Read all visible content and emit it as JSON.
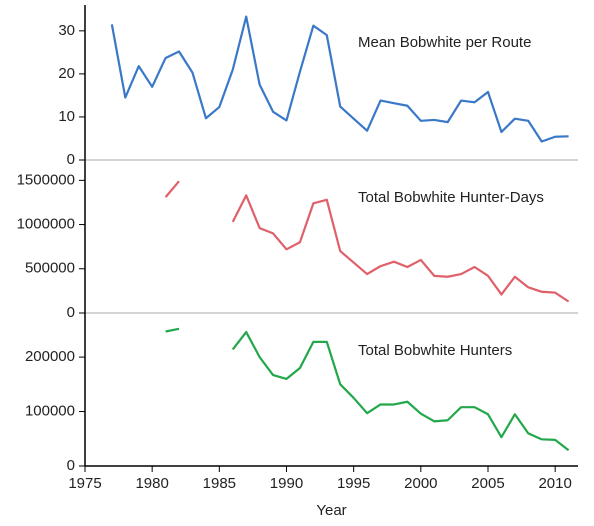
{
  "chart_data": [
    {
      "type": "line",
      "title": "Mean Bobwhite per Route",
      "x": [
        1977,
        1978,
        1979,
        1980,
        1981,
        1982,
        1983,
        1984,
        1985,
        1986,
        1987,
        1988,
        1989,
        1990,
        1991,
        1992,
        1993,
        1994,
        1995,
        1996,
        1997,
        1998,
        1999,
        2000,
        2001,
        2002,
        2003,
        2004,
        2005,
        2006,
        2007,
        2008,
        2009,
        2010,
        2011
      ],
      "series": [
        {
          "name": "Mean Bobwhite per Route",
          "color": "#3a78c8",
          "values": [
            31.5,
            14.5,
            21.8,
            17,
            23.7,
            25.2,
            20.3,
            9.7,
            12.3,
            21,
            33.3,
            17.5,
            11.2,
            9.2,
            20.5,
            31.2,
            29,
            12.4,
            9.6,
            6.8,
            13.8,
            13.2,
            12.6,
            9.1,
            9.3,
            8.8,
            13.8,
            13.4,
            15.8,
            6.5,
            9.6,
            9.1,
            4.3,
            5.4,
            5.5
          ]
        }
      ],
      "xlim": [
        1975,
        2011.7
      ],
      "ylim": [
        0,
        36
      ],
      "yticks": [
        0,
        10,
        20,
        30
      ]
    },
    {
      "type": "line",
      "title": "Total Bobwhite Hunter-Days",
      "x": [
        1977,
        1978,
        1979,
        1980,
        1981,
        1982,
        1983,
        1984,
        1985,
        1986,
        1987,
        1988,
        1989,
        1990,
        1991,
        1992,
        1993,
        1994,
        1995,
        1996,
        1997,
        1998,
        1999,
        2000,
        2001,
        2002,
        2003,
        2004,
        2005,
        2006,
        2007,
        2008,
        2009,
        2010,
        2011
      ],
      "series": [
        {
          "name": "Total Bobwhite Hunter-Days",
          "color": "#e0606a",
          "values": [
            null,
            null,
            null,
            null,
            1310000,
            1490000,
            null,
            null,
            null,
            1030000,
            1330000,
            960000,
            900000,
            720000,
            800000,
            1240000,
            1280000,
            700000,
            570000,
            440000,
            530000,
            580000,
            520000,
            600000,
            420000,
            410000,
            440000,
            520000,
            420000,
            210000,
            410000,
            290000,
            240000,
            230000,
            130000
          ]
        }
      ],
      "xlim": [
        1975,
        2011.7
      ],
      "ylim": [
        0,
        1730000
      ],
      "yticks": [
        0,
        500000,
        1000000,
        1500000
      ]
    },
    {
      "type": "line",
      "title": "Total Bobwhite Hunters",
      "x": [
        1977,
        1978,
        1979,
        1980,
        1981,
        1982,
        1983,
        1984,
        1985,
        1986,
        1987,
        1988,
        1989,
        1990,
        1991,
        1992,
        1993,
        1994,
        1995,
        1996,
        1997,
        1998,
        1999,
        2000,
        2001,
        2002,
        2003,
        2004,
        2005,
        2006,
        2007,
        2008,
        2009,
        2010,
        2011
      ],
      "series": [
        {
          "name": "Total Bobwhite Hunters",
          "color": "#22a84a",
          "values": [
            null,
            null,
            null,
            null,
            247000,
            252000,
            null,
            null,
            null,
            214000,
            246000,
            200000,
            167000,
            160000,
            180000,
            228000,
            228000,
            150000,
            125000,
            97000,
            113000,
            113000,
            118000,
            96000,
            82000,
            84000,
            108000,
            108000,
            95000,
            53000,
            95000,
            60000,
            49000,
            48000,
            29000
          ]
        }
      ],
      "xlim": [
        1975,
        2011.7
      ],
      "ylim": [
        0,
        281000
      ],
      "yticks": [
        0,
        100000,
        200000
      ],
      "xticks": [
        1975,
        1980,
        1985,
        1990,
        1995,
        2000,
        2005,
        2010
      ],
      "xlabel": "Year"
    }
  ]
}
